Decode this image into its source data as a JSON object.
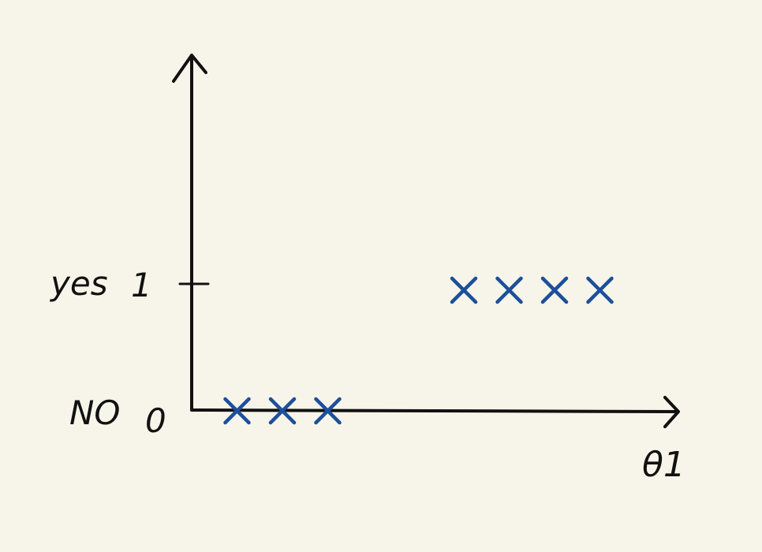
{
  "chart_data": {
    "type": "scatter",
    "xlabel": "θ1",
    "ylabel": "",
    "y_ticks": [
      {
        "value": 0,
        "label": "0",
        "category": "NO"
      },
      {
        "value": 1,
        "label": "1",
        "category": "yes"
      }
    ],
    "series": [
      {
        "marker": "x",
        "color": "#1d4f9a",
        "points": [
          {
            "x": 1,
            "y": 0
          },
          {
            "x": 2,
            "y": 0
          },
          {
            "x": 3,
            "y": 0
          },
          {
            "x": 6,
            "y": 1
          },
          {
            "x": 7,
            "y": 1
          },
          {
            "x": 8,
            "y": 1
          },
          {
            "x": 9,
            "y": 1
          }
        ]
      }
    ],
    "xlim": [
      0,
      10
    ],
    "ylim": [
      0,
      2.2
    ]
  }
}
